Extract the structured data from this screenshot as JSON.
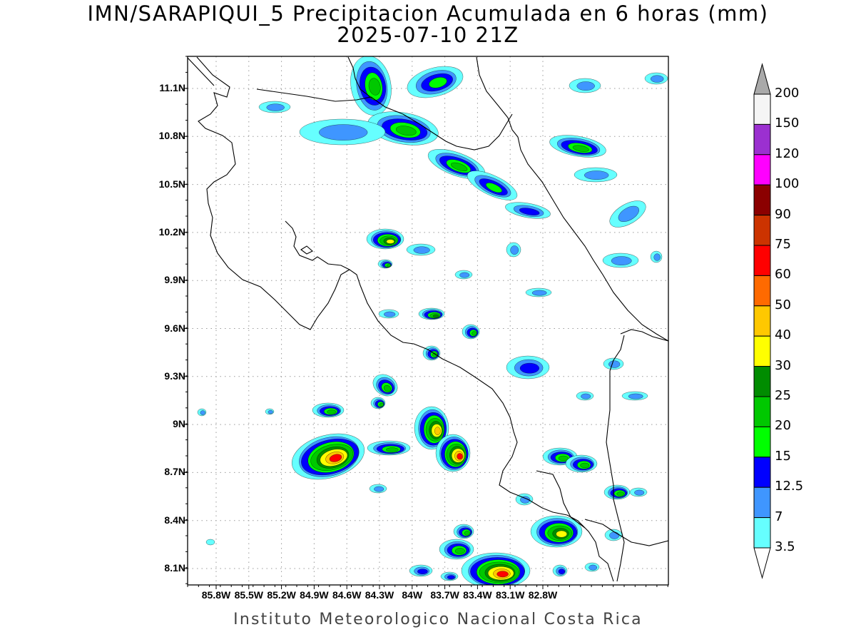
{
  "title": {
    "line1": "IMN/SARAPIQUI_5 Precipitacion Acumulada en 6 horas (mm)",
    "line2": "2025-07-10 21Z"
  },
  "credit": "Instituto Meteorologico Nacional Costa Rica",
  "axes": {
    "x_ticks": [
      "85.8W",
      "85.5W",
      "85.2W",
      "84.9W",
      "84.6W",
      "84.3W",
      "84W",
      "83.7W",
      "83.4W",
      "83.1W",
      "82.8W"
    ],
    "y_ticks": [
      "11.1N",
      "10.8N",
      "10.5N",
      "10.2N",
      "9.9N",
      "9.6N",
      "9.3N",
      "9N",
      "8.7N",
      "8.4N",
      "8.1N"
    ],
    "grid": true
  },
  "colorbar": {
    "labels": [
      "200",
      "150",
      "120",
      "100",
      "90",
      "75",
      "60",
      "50",
      "40",
      "30",
      "25",
      "20",
      "15",
      "12.5",
      "7",
      "3.5"
    ],
    "colors": [
      "#a9a9a9",
      "#f5f5f5",
      "#9b30d0",
      "#ff00ff",
      "#8b0000",
      "#cc3300",
      "#ff0000",
      "#ff6a00",
      "#ffc800",
      "#ffff00",
      "#008c00",
      "#00c800",
      "#00ff00",
      "#0000ff",
      "#3f96ff",
      "#66ffff"
    ]
  },
  "map": {
    "coastline_color": "#000000",
    "rain_levels": [
      "#66ffff",
      "#3f96ff",
      "#0000ff",
      "#00ff00",
      "#00c800",
      "#008c00",
      "#ffff00",
      "#ffc800",
      "#ff0000"
    ]
  }
}
